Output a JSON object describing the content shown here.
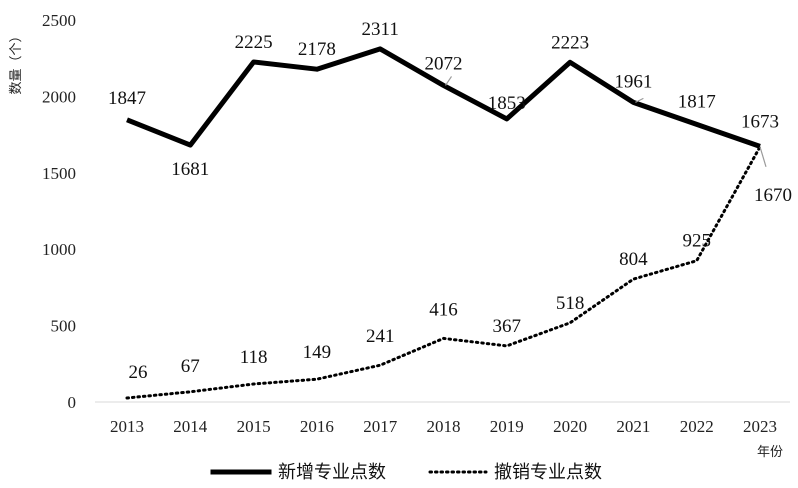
{
  "chart_data": {
    "type": "line",
    "title": "",
    "xlabel": "年份",
    "ylabel": "数量（个）",
    "ylim": [
      0,
      2500
    ],
    "yticks": [
      0,
      500,
      1000,
      1500,
      2000,
      2500
    ],
    "grid": false,
    "legend_position": "bottom",
    "categories": [
      "2013",
      "2014",
      "2015",
      "2016",
      "2017",
      "2018",
      "2019",
      "2020",
      "2021",
      "2022",
      "2023"
    ],
    "series": [
      {
        "name": "新增专业点数",
        "style": "solid",
        "color": "#000000",
        "values": [
          1847,
          1681,
          2225,
          2178,
          2311,
          2072,
          1853,
          2223,
          1961,
          1817,
          1673
        ],
        "labels": [
          "1847",
          "1681",
          "2225",
          "2178",
          "2311",
          "2072",
          "1853",
          "2223",
          "1961",
          "1817",
          "1673"
        ]
      },
      {
        "name": "撤销专业点数",
        "style": "dotted",
        "color": "#000000",
        "values": [
          26,
          67,
          118,
          149,
          241,
          416,
          367,
          518,
          804,
          925,
          1670
        ],
        "labels": [
          "26",
          "67",
          "118",
          "149",
          "241",
          "416",
          "367",
          "518",
          "804",
          "925",
          "1670"
        ]
      }
    ]
  }
}
